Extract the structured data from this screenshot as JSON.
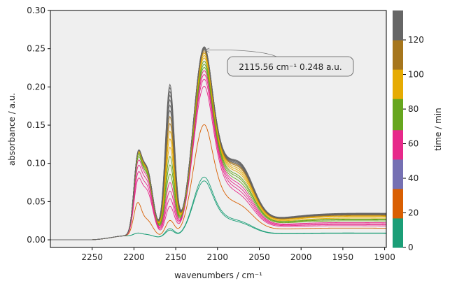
{
  "chart_data": {
    "type": "line",
    "title": "",
    "xlabel": "wavenumbers / cm⁻¹",
    "ylabel": "absorbance / a.u.",
    "xlim": [
      2300,
      1898
    ],
    "ylim": [
      -0.01,
      0.3
    ],
    "x_reversed": true,
    "grid": false,
    "plot_background": "#efefef",
    "x_ticks": [
      2250,
      2200,
      2150,
      2100,
      2050,
      2000,
      1950,
      1900
    ],
    "y_ticks": [
      0.0,
      0.05,
      0.1,
      0.15,
      0.2,
      0.25,
      0.3
    ],
    "x_tick_labels": [
      "2250",
      "2200",
      "2150",
      "2100",
      "2050",
      "2000",
      "1950",
      "1900"
    ],
    "y_tick_labels": [
      "0.00",
      "0.05",
      "0.10",
      "0.15",
      "0.20",
      "0.25",
      "0.30"
    ],
    "annotation": {
      "text": "2115.56 cm⁻¹ 0.248 a.u.",
      "x": 2115.56,
      "y": 0.248
    },
    "colorbar": {
      "label": "time / min",
      "range": [
        0,
        137
      ],
      "ticks": [
        0,
        20,
        40,
        60,
        80,
        100,
        120
      ],
      "tick_labels": [
        "0",
        "20",
        "40",
        "60",
        "80",
        "100",
        "120"
      ],
      "bands": [
        {
          "from": 0,
          "to": 17,
          "color": "#1b9e77"
        },
        {
          "from": 17,
          "to": 34,
          "color": "#d95f02"
        },
        {
          "from": 34,
          "to": 51,
          "color": "#7570b3"
        },
        {
          "from": 51,
          "to": 68,
          "color": "#e7298a"
        },
        {
          "from": 68,
          "to": 86,
          "color": "#66a61e"
        },
        {
          "from": 86,
          "to": 103,
          "color": "#e6ab02"
        },
        {
          "from": 103,
          "to": 120,
          "color": "#a6761d"
        },
        {
          "from": 120,
          "to": 137,
          "color": "#666666"
        }
      ]
    },
    "series": [
      {
        "color": "#1b9e77",
        "peak_2195": 0.003,
        "peak_2185": 0.003,
        "peak_2157": 0.01,
        "peak_2116": 0.075,
        "shoulder_2075": 0.01,
        "baseline_end": 0.002
      },
      {
        "color": "#1b9e77",
        "peak_2195": 0.003,
        "peak_2185": 0.003,
        "peak_2157": 0.012,
        "peak_2116": 0.08,
        "shoulder_2075": 0.011,
        "baseline_end": 0.002
      },
      {
        "color": "#d95f02",
        "peak_2195": 0.036,
        "peak_2185": 0.022,
        "peak_2157": 0.022,
        "peak_2116": 0.148,
        "shoulder_2075": 0.022,
        "baseline_end": 0.003
      },
      {
        "color": "#e7298a",
        "peak_2195": 0.052,
        "peak_2185": 0.06,
        "peak_2157": 0.04,
        "peak_2116": 0.198,
        "shoulder_2075": 0.028,
        "baseline_end": 0.003
      },
      {
        "color": "#e7298a",
        "peak_2195": 0.058,
        "peak_2185": 0.066,
        "peak_2157": 0.05,
        "peak_2116": 0.207,
        "shoulder_2075": 0.031,
        "baseline_end": 0.003
      },
      {
        "color": "#e7298a",
        "peak_2195": 0.064,
        "peak_2185": 0.072,
        "peak_2157": 0.06,
        "peak_2116": 0.213,
        "shoulder_2075": 0.034,
        "baseline_end": 0.003
      },
      {
        "color": "#e7298a",
        "peak_2195": 0.069,
        "peak_2185": 0.077,
        "peak_2157": 0.071,
        "peak_2116": 0.218,
        "shoulder_2075": 0.037,
        "baseline_end": 0.003
      },
      {
        "color": "#66a61e",
        "peak_2195": 0.072,
        "peak_2185": 0.08,
        "peak_2157": 0.082,
        "peak_2116": 0.222,
        "shoulder_2075": 0.04,
        "baseline_end": 0.004
      },
      {
        "color": "#66a61e",
        "peak_2195": 0.074,
        "peak_2185": 0.082,
        "peak_2157": 0.094,
        "peak_2116": 0.226,
        "shoulder_2075": 0.043,
        "baseline_end": 0.004
      },
      {
        "color": "#66a61e",
        "peak_2195": 0.075,
        "peak_2185": 0.084,
        "peak_2157": 0.105,
        "peak_2116": 0.23,
        "shoulder_2075": 0.045,
        "baseline_end": 0.004
      },
      {
        "color": "#e6ab02",
        "peak_2195": 0.076,
        "peak_2185": 0.085,
        "peak_2157": 0.117,
        "peak_2116": 0.234,
        "shoulder_2075": 0.048,
        "baseline_end": 0.004
      },
      {
        "color": "#e6ab02",
        "peak_2195": 0.077,
        "peak_2185": 0.086,
        "peak_2157": 0.128,
        "peak_2116": 0.237,
        "shoulder_2075": 0.05,
        "baseline_end": 0.005
      },
      {
        "color": "#e6ab02",
        "peak_2195": 0.077,
        "peak_2185": 0.087,
        "peak_2157": 0.138,
        "peak_2116": 0.24,
        "shoulder_2075": 0.052,
        "baseline_end": 0.005
      },
      {
        "color": "#a6761d",
        "peak_2195": 0.077,
        "peak_2185": 0.087,
        "peak_2157": 0.148,
        "peak_2116": 0.242,
        "shoulder_2075": 0.054,
        "baseline_end": 0.005
      },
      {
        "color": "#a6761d",
        "peak_2195": 0.077,
        "peak_2185": 0.088,
        "peak_2157": 0.157,
        "peak_2116": 0.244,
        "shoulder_2075": 0.055,
        "baseline_end": 0.005
      },
      {
        "color": "#666666",
        "peak_2195": 0.077,
        "peak_2185": 0.088,
        "peak_2157": 0.165,
        "peak_2116": 0.245,
        "shoulder_2075": 0.056,
        "baseline_end": 0.005
      },
      {
        "color": "#666666",
        "peak_2195": 0.077,
        "peak_2185": 0.088,
        "peak_2157": 0.172,
        "peak_2116": 0.246,
        "shoulder_2075": 0.057,
        "baseline_end": 0.005
      },
      {
        "color": "#666666",
        "peak_2195": 0.077,
        "peak_2185": 0.089,
        "peak_2157": 0.179,
        "peak_2116": 0.247,
        "shoulder_2075": 0.058,
        "baseline_end": 0.005
      },
      {
        "color": "#666666",
        "peak_2195": 0.077,
        "peak_2185": 0.089,
        "peak_2157": 0.185,
        "peak_2116": 0.248,
        "shoulder_2075": 0.058,
        "baseline_end": 0.005
      },
      {
        "color": "#666666",
        "peak_2195": 0.077,
        "peak_2185": 0.089,
        "peak_2157": 0.19,
        "peak_2116": 0.248,
        "shoulder_2075": 0.059,
        "baseline_end": 0.005
      },
      {
        "color": "#666666",
        "peak_2195": 0.077,
        "peak_2185": 0.089,
        "peak_2157": 0.195,
        "peak_2116": 0.248,
        "shoulder_2075": 0.059,
        "baseline_end": 0.005
      },
      {
        "color": "#666666",
        "peak_2195": 0.077,
        "peak_2185": 0.089,
        "peak_2157": 0.199,
        "peak_2116": 0.248,
        "shoulder_2075": 0.06,
        "baseline_end": 0.005
      }
    ]
  }
}
